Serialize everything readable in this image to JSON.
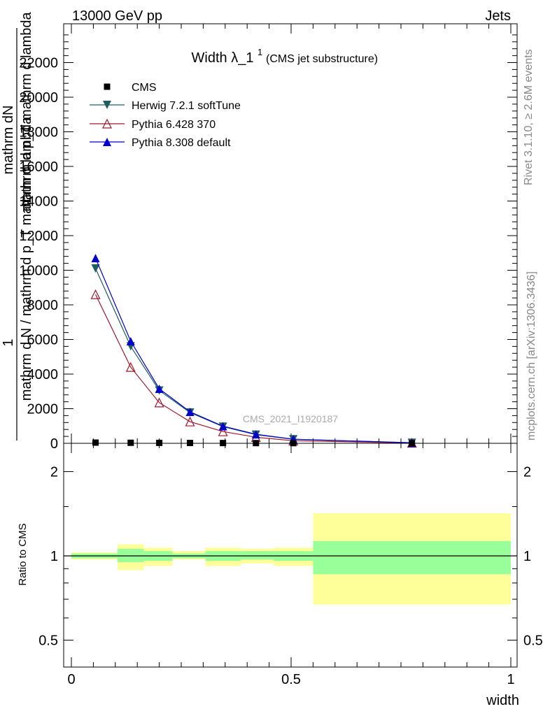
{
  "header": {
    "left": "13000 GeV pp",
    "right": "Jets"
  },
  "side": {
    "rivet": "Rivet 3.1.10, ≥ 2.6M events",
    "mcplots": "mcplots.cern.ch [arXiv:1306.3436]"
  },
  "watermark": "CMS_2021_I1920187",
  "colors": {
    "cms": "#000000",
    "herwig": "#1f5f5f",
    "pythia6": "#a0182c",
    "pythia8": "#0000cc",
    "band_inner": "#99ff99",
    "band_outer": "#ffff99"
  },
  "chart_data": [
    {
      "type": "line",
      "title": "Width λ_1",
      "title_sup": "1",
      "title_suffix": "(CMS jet substructure)",
      "ylabel_lines": [
        "1",
        "mathrm d N / mathrm d p_T mathrm d lambda",
        "mathrm dN",
        "mathrm d p_T mathrm d lambda"
      ],
      "ylim": [
        0,
        24000
      ],
      "yticks": [
        0,
        2000,
        4000,
        6000,
        8000,
        10000,
        12000,
        14000,
        16000,
        18000,
        20000,
        22000
      ],
      "yticklabels": [
        "0",
        "2000",
        "4000",
        "6000",
        "8000",
        "10000",
        "12000",
        "14000",
        "16000",
        "18000",
        "20000",
        "22000"
      ],
      "xlim": [
        0,
        1
      ],
      "legend_position": "top-left",
      "series": [
        {
          "name": "CMS",
          "marker": "square",
          "x": [
            0.055,
            0.135,
            0.2,
            0.27,
            0.345,
            0.42,
            0.505,
            0.775
          ],
          "values": [
            40,
            30,
            25,
            20,
            15,
            12,
            8,
            2
          ]
        },
        {
          "name": "Herwig 7.2.1 softTune",
          "marker": "triangle-down",
          "x": [
            0.055,
            0.135,
            0.2,
            0.27,
            0.345,
            0.42,
            0.505,
            0.775
          ],
          "values": [
            10100,
            5600,
            3050,
            1780,
            960,
            500,
            230,
            30
          ]
        },
        {
          "name": "Pythia 6.428 370",
          "marker": "triangle-up-open",
          "x": [
            0.055,
            0.135,
            0.2,
            0.27,
            0.345,
            0.42,
            0.505,
            0.775
          ],
          "values": [
            8600,
            4400,
            2350,
            1250,
            680,
            350,
            150,
            20
          ]
        },
        {
          "name": "Pythia 8.308 default",
          "marker": "triangle-up",
          "x": [
            0.055,
            0.135,
            0.2,
            0.27,
            0.345,
            0.42,
            0.505,
            0.775
          ],
          "values": [
            10700,
            5900,
            3150,
            1820,
            990,
            520,
            240,
            32
          ]
        }
      ]
    },
    {
      "type": "area",
      "ylabel": "Ratio to CMS",
      "xlabel": "width",
      "ylim": [
        0.4,
        2.3
      ],
      "yticks": [
        0.5,
        1,
        2
      ],
      "yticklabels": [
        "0.5",
        "1",
        "2"
      ],
      "xticks": [
        0,
        0.5,
        1
      ],
      "xticklabels": [
        "0",
        "0.5",
        "1"
      ],
      "xlim": [
        0,
        1
      ],
      "reference": 1,
      "bins": [
        {
          "x0": 0.0,
          "x1": 0.105,
          "inner": [
            0.98,
            1.02
          ],
          "outer": [
            0.97,
            1.03
          ]
        },
        {
          "x0": 0.105,
          "x1": 0.165,
          "inner": [
            0.95,
            1.06
          ],
          "outer": [
            0.89,
            1.1
          ]
        },
        {
          "x0": 0.165,
          "x1": 0.23,
          "inner": [
            0.96,
            1.04
          ],
          "outer": [
            0.92,
            1.07
          ]
        },
        {
          "x0": 0.23,
          "x1": 0.305,
          "inner": [
            0.98,
            1.02
          ],
          "outer": [
            0.97,
            1.04
          ]
        },
        {
          "x0": 0.305,
          "x1": 0.385,
          "inner": [
            0.96,
            1.04
          ],
          "outer": [
            0.92,
            1.07
          ]
        },
        {
          "x0": 0.385,
          "x1": 0.46,
          "inner": [
            0.97,
            1.04
          ],
          "outer": [
            0.94,
            1.06
          ]
        },
        {
          "x0": 0.46,
          "x1": 0.55,
          "inner": [
            0.96,
            1.04
          ],
          "outer": [
            0.92,
            1.07
          ]
        },
        {
          "x0": 0.55,
          "x1": 1.0,
          "inner": [
            0.86,
            1.13
          ],
          "outer": [
            0.67,
            1.42
          ]
        }
      ]
    }
  ]
}
